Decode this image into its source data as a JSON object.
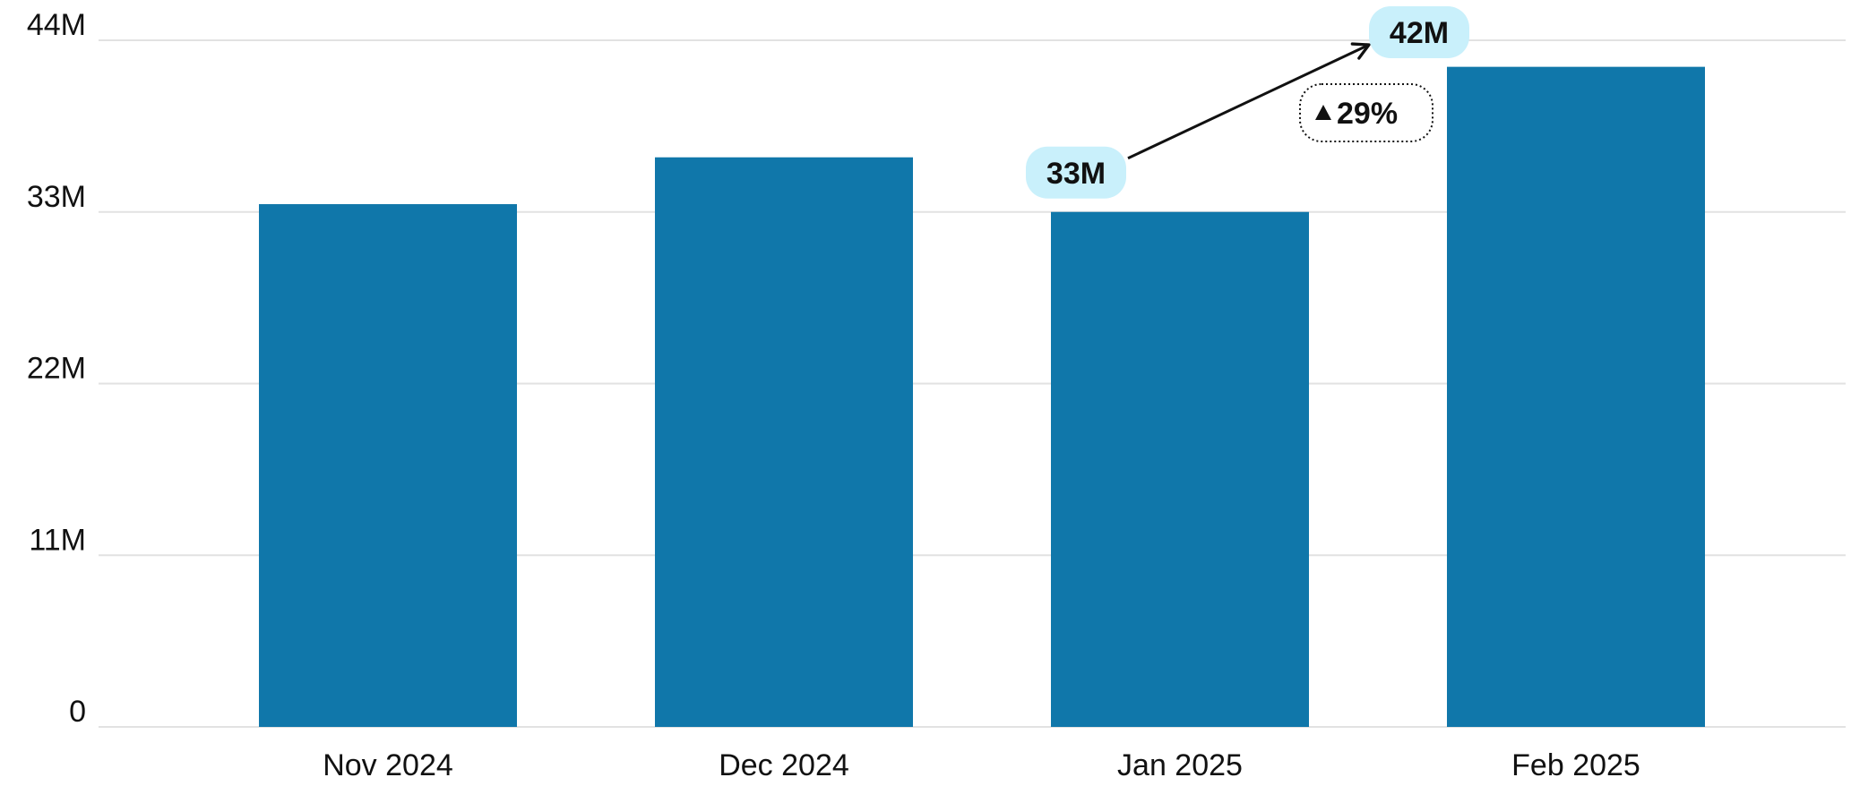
{
  "chart_data": {
    "type": "bar",
    "categories": [
      "Nov 2024",
      "Dec 2024",
      "Jan 2025",
      "Feb 2025"
    ],
    "values": [
      33.5,
      36.5,
      33.0,
      42.3
    ],
    "ylim": [
      0,
      44
    ],
    "yticks": [
      0,
      11,
      22,
      33,
      44
    ],
    "ytick_labels": [
      "0",
      "11M",
      "22M",
      "33M",
      "44M"
    ],
    "grid": true,
    "colors": {
      "bar": "#1077aa",
      "grid": "#e2e2e2",
      "callout_fill": "#c9f0fb",
      "text": "#111111"
    },
    "annotations": {
      "from_label": "33M",
      "to_label": "42M",
      "change_label": "29%",
      "change_icon": "up-triangle-icon",
      "from_category": "Jan 2025",
      "to_category": "Feb 2025"
    }
  }
}
